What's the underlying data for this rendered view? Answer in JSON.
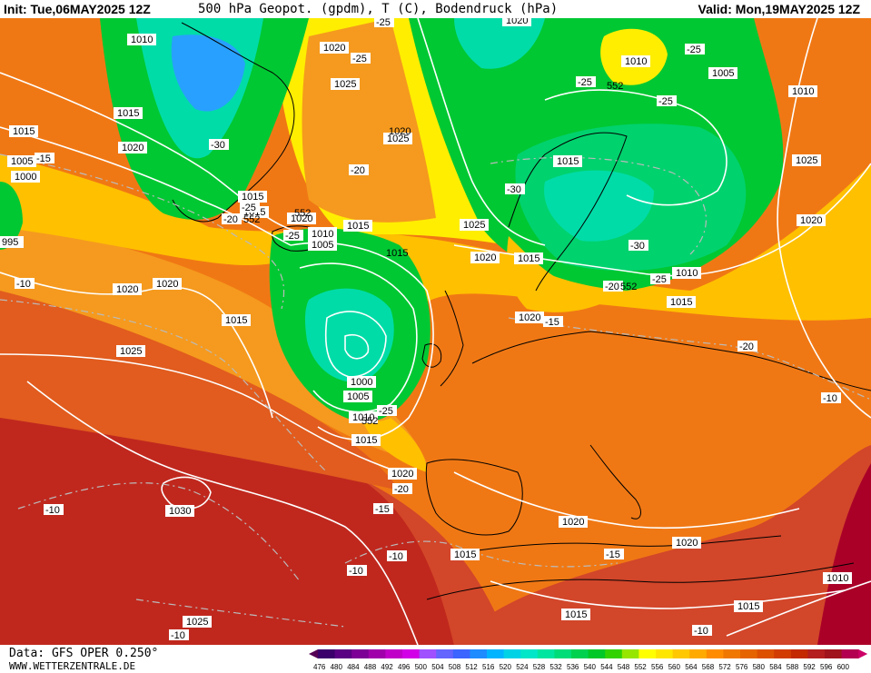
{
  "header": {
    "init": "Init: Tue,06MAY2025 12Z",
    "title": "500 hPa Geopot. (gpdm), T (C), Bodendruck (hPa)",
    "valid": "Valid: Mon,19MAY2025 12Z"
  },
  "footer": {
    "source": "Data: GFS OPER 0.250°",
    "website": "WWW.WETTERZENTRALE.DE"
  },
  "scale": {
    "values": [
      "476",
      "480",
      "484",
      "488",
      "492",
      "496",
      "500",
      "504",
      "508",
      "512",
      "516",
      "520",
      "524",
      "528",
      "532",
      "536",
      "540",
      "544",
      "548",
      "552",
      "556",
      "560",
      "564",
      "568",
      "572",
      "576",
      "580",
      "584",
      "588",
      "592",
      "596",
      "600"
    ],
    "colors": [
      "#3b006b",
      "#5a0082",
      "#7d0096",
      "#a000aa",
      "#c000c8",
      "#d200e6",
      "#a050ff",
      "#6464ff",
      "#3c64ff",
      "#1e8cff",
      "#00b4ff",
      "#00d2e6",
      "#00e6c8",
      "#00e6a0",
      "#00dc78",
      "#00d250",
      "#00c828",
      "#32d200",
      "#96e600",
      "#ffff00",
      "#ffe600",
      "#ffc800",
      "#ffaa00",
      "#ff8c00",
      "#f07800",
      "#e66400",
      "#dc5000",
      "#d23c00",
      "#c32800",
      "#b41e1e",
      "#a0141e",
      "#b40050"
    ],
    "lower_arrow": "#550055",
    "upper_arrow": "#cc0066"
  },
  "map": {
    "colors": {
      "deep_red": "#c0281e",
      "red": "#d2462a",
      "orange_red": "#e15c1e",
      "orange": "#f07814",
      "light_orange": "#f59a1e",
      "yellow_orange": "#ffc000",
      "yellow": "#ffee00",
      "green": "#00c832",
      "mid_green": "#00d26e",
      "cyan_green": "#00dca8",
      "blue": "#28a0ff",
      "magenta": "#aa0028",
      "isobar": "#ffffff",
      "isotherm": "#bbbbbb",
      "coast": "#000000"
    },
    "pressure_labels": [
      "1010",
      "1015",
      "1020",
      "1005",
      "1000",
      "1015",
      "1020",
      "1025",
      "1020",
      "1015",
      "1020",
      "1010",
      "1015",
      "1025",
      "1025",
      "1020",
      "1015",
      "1010",
      "1005",
      "1000",
      "1005",
      "1010",
      "1015",
      "1020",
      "1015",
      "1020",
      "1025",
      "1020",
      "1015",
      "1010",
      "1015",
      "1020",
      "1025",
      "1030",
      "1025",
      "1015",
      "1020",
      "1020",
      "1015",
      "1010",
      "1015",
      "1010",
      "1005",
      "1010",
      "1020",
      "1015",
      "995",
      "1015",
      "1020"
    ],
    "temp_labels": [
      "-25",
      "-25",
      "-30",
      "-20",
      "-25",
      "-20",
      "-25",
      "-15",
      "-10",
      "-25",
      "-30",
      "-25",
      "-20",
      "-25",
      "-15",
      "-20",
      "-10",
      "-25",
      "-20",
      "-15",
      "-10",
      "-10",
      "-10",
      "-15",
      "-10",
      "-10",
      "-30",
      "-25"
    ],
    "geopot_labels": [
      "552",
      "552",
      "552",
      "552",
      "552"
    ]
  }
}
